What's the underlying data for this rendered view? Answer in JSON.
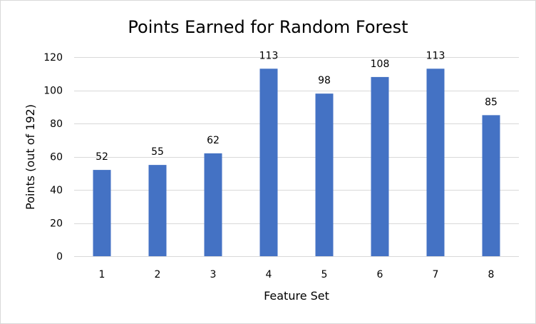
{
  "chart_data": {
    "type": "bar",
    "title": "Points Earned for Random Forest",
    "xlabel": "Feature Set",
    "ylabel": "Points (out of 192)",
    "categories": [
      "1",
      "2",
      "3",
      "4",
      "5",
      "6",
      "7",
      "8"
    ],
    "values": [
      52,
      55,
      62,
      113,
      98,
      108,
      113,
      85
    ],
    "ylim": [
      0,
      120
    ],
    "yticks": [
      0,
      20,
      40,
      60,
      80,
      100,
      120
    ],
    "grid": true,
    "legend": "none",
    "data_labels": true,
    "bar_color": "#4472c4"
  }
}
